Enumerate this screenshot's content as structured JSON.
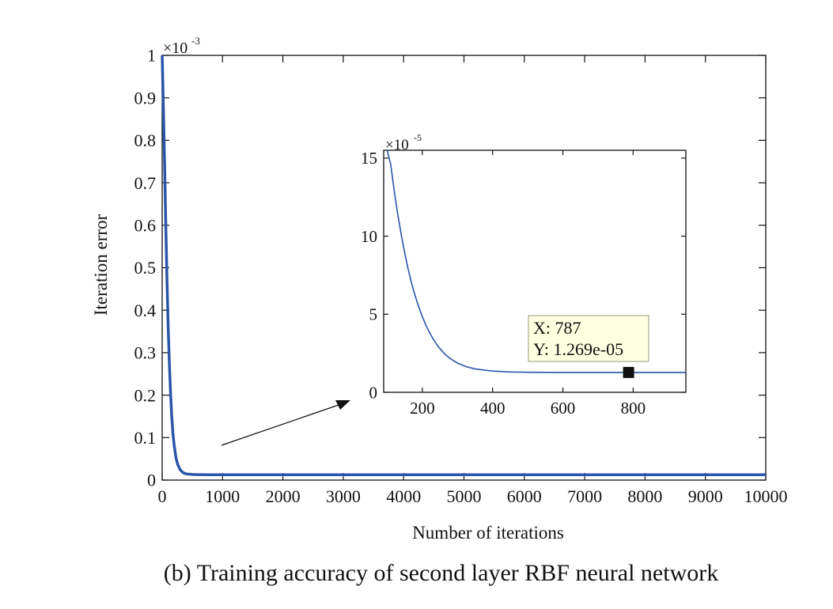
{
  "caption": "(b) Training accuracy of second layer RBF neural network",
  "chart_data": [
    {
      "id": "main",
      "type": "line",
      "xlabel": "Number of iterations",
      "ylabel": "Iteration error",
      "exponent_label": "×10",
      "exponent_power": "-3",
      "xlim": [
        0,
        10000
      ],
      "ylim": [
        0,
        1
      ],
      "xticks": [
        "0",
        "1000",
        "2000",
        "3000",
        "4000",
        "5000",
        "6000",
        "7000",
        "8000",
        "9000",
        "10000"
      ],
      "yticks": [
        "0",
        "0.1",
        "0.2",
        "0.3",
        "0.4",
        "0.5",
        "0.6",
        "0.7",
        "0.8",
        "0.9",
        "1"
      ],
      "grid": false,
      "line_color": "#2a55a8",
      "series": [
        {
          "x": [
            0,
            20,
            40,
            60,
            80,
            100,
            120,
            140,
            160,
            180,
            200,
            230,
            260,
            300,
            350,
            400,
            500,
            600,
            800,
            1000,
            2000,
            4000,
            6000,
            8000,
            10000
          ],
          "y": [
            1.0,
            0.88,
            0.74,
            0.6,
            0.47,
            0.36,
            0.27,
            0.2,
            0.147,
            0.108,
            0.08,
            0.052,
            0.036,
            0.024,
            0.017,
            0.0145,
            0.0132,
            0.0128,
            0.0127,
            0.0127,
            0.0127,
            0.0127,
            0.0127,
            0.0127,
            0.0127
          ]
        }
      ]
    },
    {
      "id": "inset",
      "type": "line",
      "exponent_label": "×10",
      "exponent_power": "-5",
      "xlim": [
        90,
        950
      ],
      "ylim": [
        0,
        15.5
      ],
      "xticks": [
        "200",
        "400",
        "600",
        "800"
      ],
      "yticks": [
        "0",
        "5",
        "10",
        "15"
      ],
      "grid": false,
      "line_color": "#2a55a8",
      "series": [
        {
          "x": [
            100,
            110,
            120,
            130,
            140,
            150,
            160,
            170,
            180,
            190,
            200,
            210,
            220,
            230,
            240,
            250,
            260,
            270,
            280,
            300,
            325,
            350,
            400,
            450,
            500,
            550,
            600,
            700,
            800,
            950
          ],
          "y": [
            16.5,
            14.6,
            12.9,
            11.4,
            10.1,
            8.9,
            7.85,
            6.95,
            6.15,
            5.45,
            4.85,
            4.3,
            3.85,
            3.45,
            3.1,
            2.8,
            2.55,
            2.33,
            2.15,
            1.87,
            1.64,
            1.5,
            1.36,
            1.3,
            1.28,
            1.275,
            1.272,
            1.27,
            1.269,
            1.269
          ]
        }
      ],
      "datatip": {
        "x": 787,
        "y": 1.269,
        "line_x": "X: 787",
        "line_y": "Y: 1.269e-05",
        "bg_color": "#ffffe1"
      }
    }
  ]
}
